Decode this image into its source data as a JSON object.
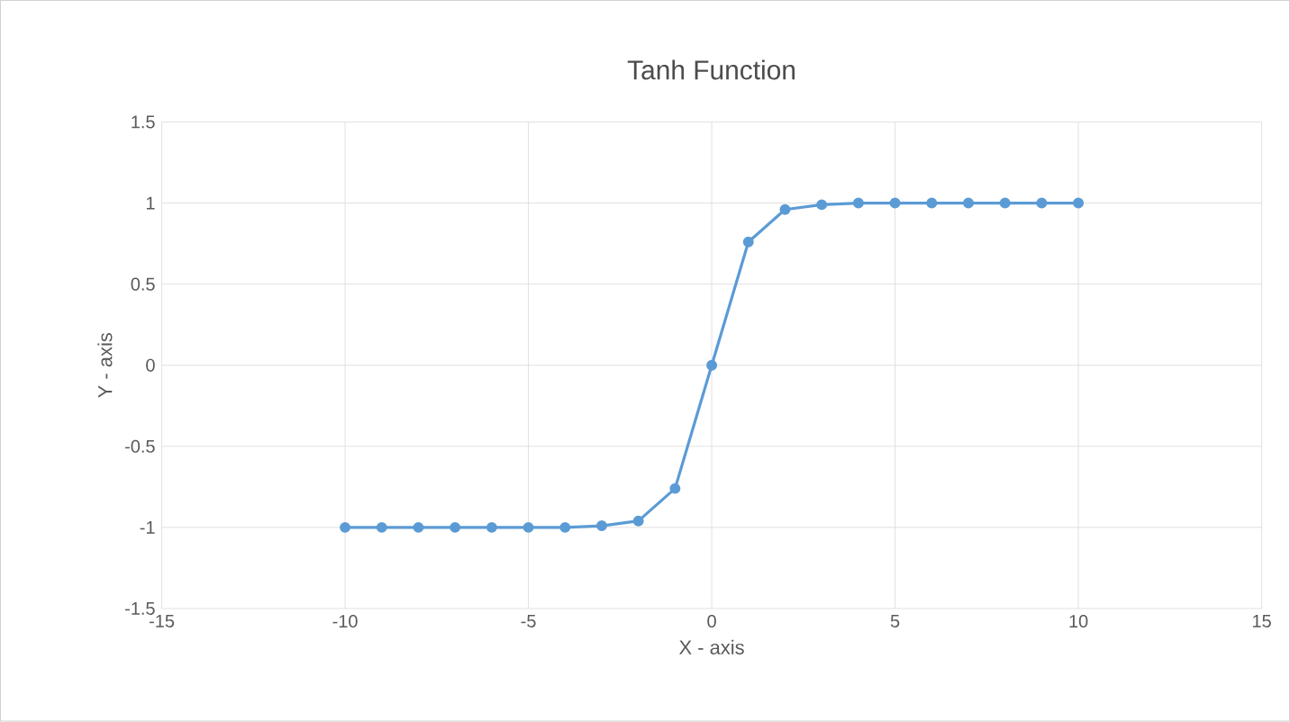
{
  "chart_data": {
    "type": "line",
    "title": "Tanh Function",
    "xlabel": "X - axis",
    "ylabel": "Y - axis",
    "x": [
      -10,
      -9,
      -8,
      -7,
      -6,
      -5,
      -4,
      -3,
      -2,
      -1,
      0,
      1,
      2,
      3,
      4,
      5,
      6,
      7,
      8,
      9,
      10
    ],
    "series": [
      {
        "color": "#5b9bd5",
        "values": [
          -1,
          -1,
          -1,
          -1,
          -1,
          -1,
          -1,
          -0.99,
          -0.96,
          -0.76,
          0,
          0.76,
          0.96,
          0.99,
          1,
          1,
          1,
          1,
          1,
          1,
          1
        ]
      }
    ],
    "xlim": [
      -15,
      15
    ],
    "xticks": [
      -15,
      -10,
      -5,
      0,
      5,
      10,
      15
    ],
    "ylim": [
      -1.5,
      1.5
    ],
    "yticks": [
      -1.5,
      -1,
      -0.5,
      0,
      0.5,
      1,
      1.5
    ],
    "grid": true,
    "marker": "circle",
    "line_style": "solid"
  }
}
